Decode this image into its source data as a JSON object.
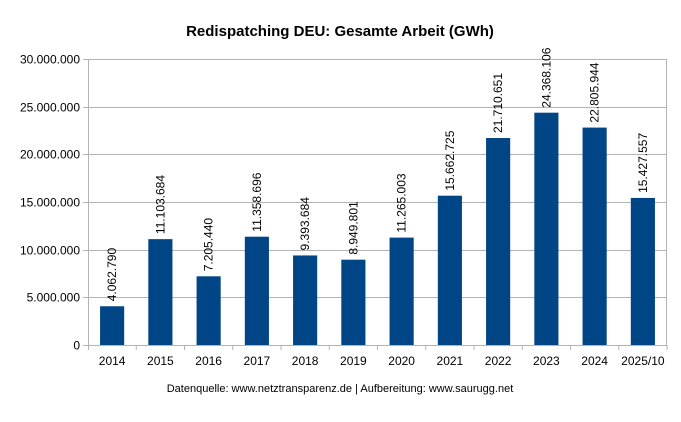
{
  "chart_data": {
    "type": "bar",
    "title": "Redispatching DEU: Gesamte Arbeit (GWh)",
    "xlabel": "",
    "ylabel": "",
    "source_note": "Datenquelle: www.netztransparenz.de  | Aufbereitung: www.saurugg.net",
    "categories": [
      "2014",
      "2015",
      "2016",
      "2017",
      "2018",
      "2019",
      "2020",
      "2021",
      "2022",
      "2023",
      "2024",
      "2025/10"
    ],
    "values": [
      4062790,
      11103684,
      7205440,
      11358696,
      9393684,
      8949801,
      11265003,
      15662725,
      21710651,
      24368106,
      22805944,
      15427557
    ],
    "data_labels": [
      "4.062.790",
      "11.103.684",
      "7.205.440",
      "11.358.696",
      "9.393.684",
      "8.949.801",
      "11.265.003",
      "15.662.725",
      "21.710.651",
      "24.368.106",
      "22.805.944",
      "15.427.557"
    ],
    "ylim": [
      0,
      30000000
    ],
    "yticks": [
      0,
      5000000,
      10000000,
      15000000,
      20000000,
      25000000,
      30000000
    ],
    "ytick_labels": [
      "0",
      "5.000.000",
      "10.000.000",
      "15.000.000",
      "20.000.000",
      "25.000.000",
      "30.000.000"
    ],
    "grid": true,
    "legend": "none",
    "bar_color": "#004586",
    "grid_color": "#b3b3b3"
  }
}
